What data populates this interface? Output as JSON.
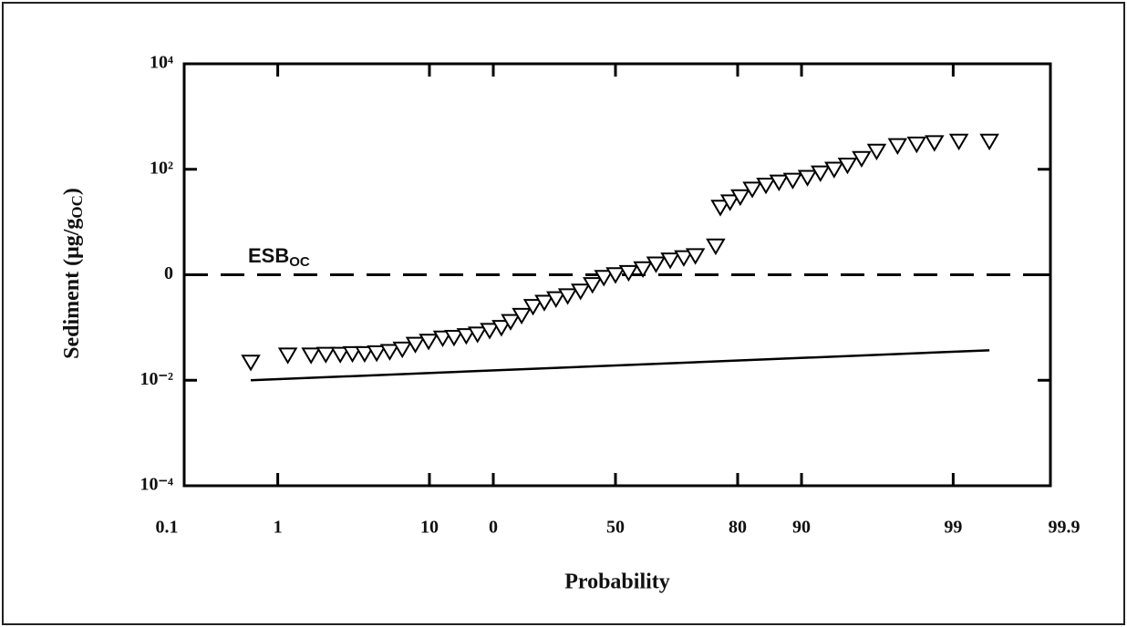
{
  "chart_data": {
    "type": "scatter",
    "xscale": "probability",
    "yscale": "log",
    "xlabel": "Probability",
    "ylabel": "Sediment (μg/g",
    "ylabel_sub": "OC",
    "ylabel_end": ")",
    "xlim": [
      0.1,
      99.9
    ],
    "ylim": [
      0.0001,
      10000
    ],
    "xticks": [
      0.1,
      1,
      10,
      {
        "value": 20,
        "label": "0"
      },
      50,
      80,
      90,
      99,
      99.9
    ],
    "yticks": [
      {
        "value": 0.0001,
        "label": "10⁻⁴"
      },
      {
        "value": 0.01,
        "label": "10⁻²"
      },
      {
        "value": 1,
        "label": "0"
      },
      {
        "value": 100,
        "label": "10²"
      },
      {
        "value": 10000,
        "label": "10⁴"
      }
    ],
    "marker_color": "#000000",
    "x": [
      0.6,
      1.2,
      1.8,
      2.3,
      2.9,
      3.5,
      4.2,
      5.0,
      6.0,
      7.1,
      8.4,
      9.9,
      11.7,
      13.3,
      15.2,
      17.1,
      19.3,
      21.6,
      23.5,
      25.9,
      28.5,
      31.2,
      34.1,
      37.1,
      40.5,
      43.7,
      46.8,
      50,
      53.6,
      57.5,
      61.0,
      64.7,
      68.1,
      70.9,
      75.5,
      76.5,
      78.5,
      80.5,
      82.7,
      85,
      87,
      88.9,
      90.7,
      92.1,
      93.4,
      94.5,
      95.5,
      96.4,
      97.4,
      98.1,
      98.6,
      99.1,
      99.5
    ],
    "values": [
      0.022,
      0.03,
      0.03,
      0.031,
      0.031,
      0.032,
      0.032,
      0.033,
      0.035,
      0.039,
      0.048,
      0.055,
      0.063,
      0.065,
      0.07,
      0.075,
      0.088,
      0.1,
      0.13,
      0.17,
      0.25,
      0.3,
      0.35,
      0.4,
      0.49,
      0.65,
      0.89,
      1.0,
      1.1,
      1.3,
      1.6,
      1.9,
      2.1,
      2.3,
      3.5,
      19,
      24,
      30,
      42,
      50,
      57,
      62,
      70,
      85,
      100,
      120,
      160,
      220,
      280,
      300,
      320,
      340,
      340
    ],
    "fit_line": {
      "x": [
        0.6,
        99.5
      ],
      "values": [
        0.01,
        0.037
      ]
    },
    "reference_line": {
      "value": 1,
      "label": "ESB",
      "label_sub": "OC"
    }
  }
}
